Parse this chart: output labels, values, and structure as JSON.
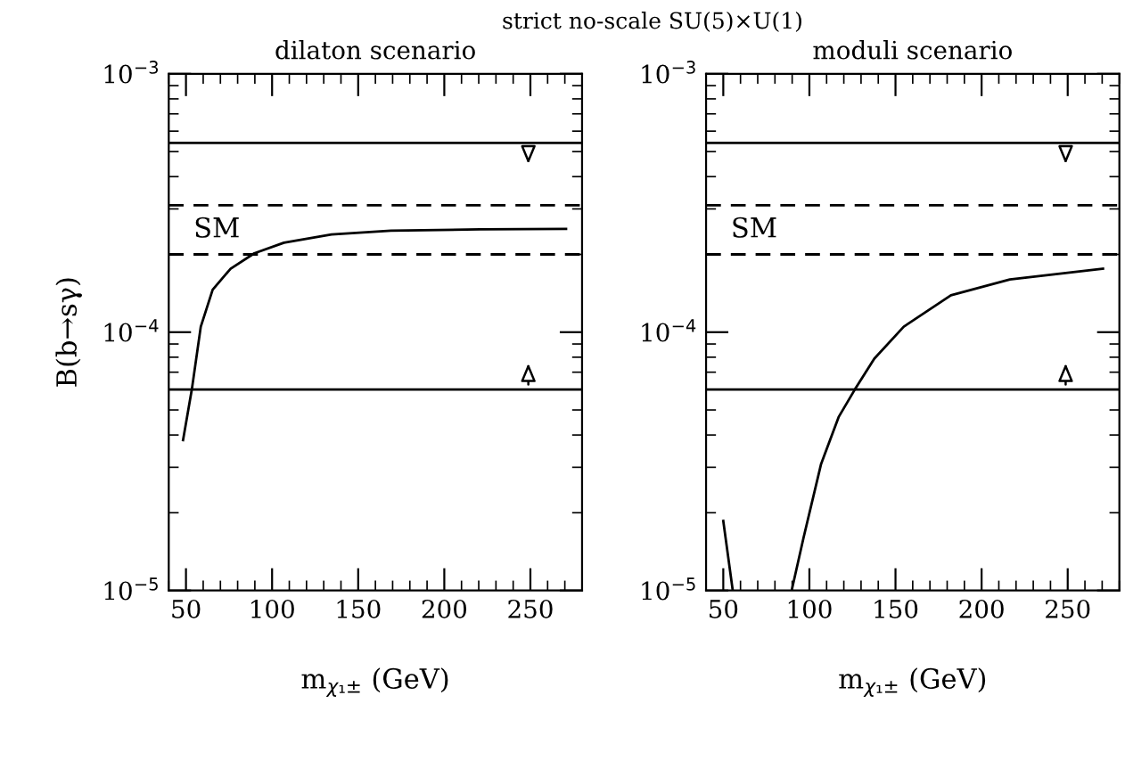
{
  "chart_data": [
    {
      "type": "line",
      "title": "dilaton scenario",
      "ylabel": "B(b→sγ)",
      "xlabel": "m$_{χ₁±}$ (GeV)",
      "log": "y",
      "grid": false,
      "legend": false,
      "annotations": [
        "strict no-scale SU(5)×U(1)",
        "SM"
      ],
      "xlim": [
        40,
        280
      ],
      "xticks": [
        50,
        100,
        150,
        200,
        250
      ],
      "ylim": [
        1e-05,
        0.001
      ],
      "yticks": [
        {
          "value": 1e-05,
          "label": "10$^{−5}$"
        },
        {
          "value": 0.0001,
          "label": "10$^{−4}$"
        },
        {
          "value": 0.001,
          "label": "10$^{−3}$"
        }
      ],
      "ref_lines": [
        {
          "axis": "y",
          "value": 0.00054,
          "color": "#000000",
          "line_style": "solid"
        },
        {
          "axis": "y",
          "value": 0.00031,
          "color": "#000000",
          "line_style": "dashed"
        },
        {
          "axis": "y",
          "value": 0.0002,
          "color": "#000000",
          "line_style": "dashed"
        },
        {
          "axis": "y",
          "value": 6e-05,
          "color": "#000000",
          "line_style": "solid"
        }
      ],
      "series": [
        {
          "color": "#000000",
          "x": [
            48.3,
            53.4,
            58.6,
            65.5,
            75.9,
            89.7,
            106.9,
            134.5,
            169,
            220.7,
            270.7
          ],
          "values": [
            3.82e-05,
            6e-05,
            0.000105,
            0.000146,
            0.000176,
            0.000202,
            0.000222,
            0.000239,
            0.000247,
            0.00025,
            0.000251
          ]
        }
      ]
    },
    {
      "type": "line",
      "title": "moduli scenario",
      "xlabel": "m$_{χ₁±}$ (GeV)",
      "log": "y",
      "grid": false,
      "legend": false,
      "annotations": [
        "SM"
      ],
      "xlim": [
        40,
        280
      ],
      "xticks": [
        50,
        100,
        150,
        200,
        250
      ],
      "ylim": [
        1e-05,
        0.001
      ],
      "yticks": [
        {
          "value": 1e-05,
          "label": "10$^{−5}$"
        },
        {
          "value": 0.0001,
          "label": "10$^{−4}$"
        },
        {
          "value": 0.001,
          "label": "10$^{−3}$"
        }
      ],
      "ref_lines": [
        {
          "axis": "y",
          "value": 0.00054,
          "color": "#000000",
          "line_style": "solid"
        },
        {
          "axis": "y",
          "value": 0.00031,
          "color": "#000000",
          "line_style": "dashed"
        },
        {
          "axis": "y",
          "value": 0.0002,
          "color": "#000000",
          "line_style": "dashed"
        },
        {
          "axis": "y",
          "value": 6e-05,
          "color": "#000000",
          "line_style": "solid"
        }
      ],
      "series": [
        {
          "color": "#000000",
          "x": [
            50,
            55.5,
            72,
            89.7,
            96.6,
            106.8,
            117.1,
            126.4,
            137.7,
            154.8,
            182.2,
            216.4,
            270.5
          ],
          "values": [
            1.86e-05,
            1e-05,
            null,
            1e-05,
            1.6e-05,
            3.09e-05,
            4.71e-05,
            6e-05,
            7.9e-05,
            0.000105,
            0.000139,
            0.00016,
            0.000176
          ]
        }
      ]
    }
  ]
}
